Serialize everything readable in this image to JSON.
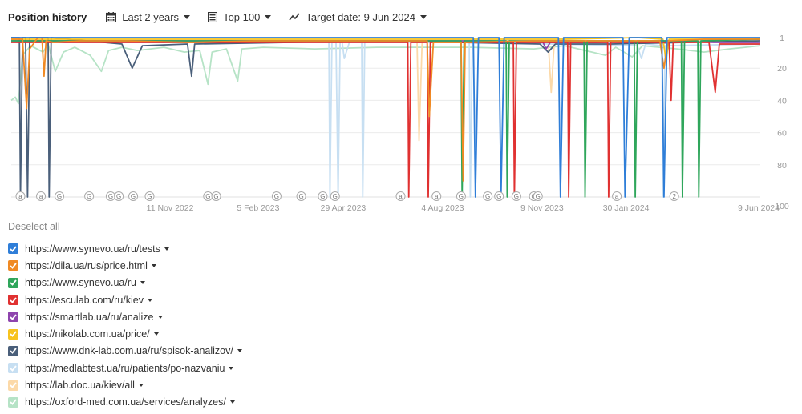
{
  "header": {
    "title": "Position history",
    "period": "Last 2 years",
    "top": "Top 100",
    "target": "Target date: 9 Jun 2024"
  },
  "chart_data": {
    "type": "line",
    "ylim": [
      1,
      100
    ],
    "y_inverted": true,
    "grid": true,
    "yticks": [
      1,
      20,
      40,
      60,
      80,
      100
    ],
    "xticks": [
      "11 Nov 2022",
      "5 Feb 2023",
      "29 Apr 2023",
      "4 Aug 2023",
      "9 Nov 2023",
      "30 Jan 2024",
      "9 Jun 2024"
    ],
    "xlim": [
      "2022-06-09",
      "2024-06-09"
    ],
    "annotations": [
      {
        "date": "2022-06-18",
        "label": "a"
      },
      {
        "date": "2022-07-08",
        "label": "a"
      },
      {
        "date": "2022-07-26",
        "label": "G"
      },
      {
        "date": "2022-08-24",
        "label": "G"
      },
      {
        "date": "2022-09-14",
        "label": "G"
      },
      {
        "date": "2022-09-22",
        "label": "G"
      },
      {
        "date": "2022-10-06",
        "label": "G"
      },
      {
        "date": "2022-10-22",
        "label": "G"
      },
      {
        "date": "2022-12-18",
        "label": "G"
      },
      {
        "date": "2022-12-26",
        "label": "G"
      },
      {
        "date": "2023-02-23",
        "label": "G"
      },
      {
        "date": "2023-03-19",
        "label": "G"
      },
      {
        "date": "2023-04-09",
        "label": "G"
      },
      {
        "date": "2023-04-21",
        "label": "G"
      },
      {
        "date": "2023-06-24",
        "label": "a"
      },
      {
        "date": "2023-07-29",
        "label": "a"
      },
      {
        "date": "2023-08-22",
        "label": "G"
      },
      {
        "date": "2023-09-17",
        "label": "G"
      },
      {
        "date": "2023-09-28",
        "label": "G"
      },
      {
        "date": "2023-10-15",
        "label": "G"
      },
      {
        "date": "2023-11-01",
        "label": "G"
      },
      {
        "date": "2023-11-05",
        "label": "G"
      },
      {
        "date": "2024-01-21",
        "label": "a"
      },
      {
        "date": "2024-03-17",
        "label": "2"
      }
    ],
    "series": [
      {
        "url": "https://www.synevo.ua/ru/tests",
        "color": "#2f7ed8",
        "points": [
          [
            "2022-06-09",
            1
          ],
          [
            "2022-07-24",
            1
          ],
          [
            "2022-09-05",
            1
          ],
          [
            "2022-11-20",
            1
          ],
          [
            "2023-02-01",
            1
          ],
          [
            "2023-05-01",
            1
          ],
          [
            "2023-08-12",
            1
          ],
          [
            "2023-09-03",
            1
          ],
          [
            "2023-09-05",
            100
          ],
          [
            "2023-09-08",
            1
          ],
          [
            "2023-09-28",
            1
          ],
          [
            "2023-09-30",
            100
          ],
          [
            "2023-10-03",
            1
          ],
          [
            "2023-11-25",
            1
          ],
          [
            "2023-11-27",
            100
          ],
          [
            "2023-11-30",
            1
          ],
          [
            "2024-01-27",
            1
          ],
          [
            "2024-01-29",
            100
          ],
          [
            "2024-02-02",
            1
          ],
          [
            "2024-03-05",
            1
          ],
          [
            "2024-03-07",
            100
          ],
          [
            "2024-03-10",
            1
          ],
          [
            "2024-04-20",
            1
          ],
          [
            "2024-06-09",
            1
          ]
        ]
      },
      {
        "url": "https://dila.ua/rus/price.html",
        "color": "#f08a24",
        "points": [
          [
            "2022-06-09",
            2
          ],
          [
            "2022-06-20",
            2
          ],
          [
            "2022-06-24",
            45
          ],
          [
            "2022-06-27",
            8
          ],
          [
            "2022-07-05",
            1
          ],
          [
            "2022-07-09",
            1
          ],
          [
            "2022-07-11",
            25
          ],
          [
            "2022-07-13",
            3
          ],
          [
            "2022-07-20",
            4
          ],
          [
            "2022-08-15",
            3
          ],
          [
            "2022-10-01",
            3
          ],
          [
            "2022-12-01",
            4
          ],
          [
            "2023-02-01",
            3
          ],
          [
            "2023-05-01",
            3
          ],
          [
            "2023-07-20",
            3
          ],
          [
            "2023-07-22",
            50
          ],
          [
            "2023-07-26",
            4
          ],
          [
            "2023-08-22",
            4
          ],
          [
            "2023-08-24",
            90
          ],
          [
            "2023-08-26",
            4
          ],
          [
            "2023-11-01",
            3
          ],
          [
            "2024-02-15",
            3
          ],
          [
            "2024-03-03",
            3
          ],
          [
            "2024-03-07",
            20
          ],
          [
            "2024-03-11",
            3
          ],
          [
            "2024-04-15",
            2
          ],
          [
            "2024-06-09",
            2
          ]
        ]
      },
      {
        "url": "https://www.synevo.ua/ru",
        "color": "#2fa65b",
        "points": [
          [
            "2022-06-09",
            3
          ],
          [
            "2022-12-01",
            3
          ],
          [
            "2023-06-01",
            3
          ],
          [
            "2023-08-22",
            3
          ],
          [
            "2023-08-23",
            100
          ],
          [
            "2023-08-25",
            3
          ],
          [
            "2023-10-05",
            3
          ],
          [
            "2023-10-06",
            100
          ],
          [
            "2023-10-08",
            3
          ],
          [
            "2023-12-20",
            3
          ],
          [
            "2023-12-21",
            100
          ],
          [
            "2023-12-23",
            3
          ],
          [
            "2024-02-07",
            3
          ],
          [
            "2024-02-08",
            100
          ],
          [
            "2024-02-10",
            3
          ],
          [
            "2024-03-24",
            3
          ],
          [
            "2024-03-25",
            100
          ],
          [
            "2024-03-27",
            3
          ],
          [
            "2024-04-09",
            3
          ],
          [
            "2024-04-10",
            100
          ],
          [
            "2024-04-12",
            3
          ],
          [
            "2024-06-09",
            2
          ]
        ]
      },
      {
        "url": "https://esculab.com/ru/kiev",
        "color": "#e03131",
        "points": [
          [
            "2022-06-09",
            4
          ],
          [
            "2023-05-01",
            4
          ],
          [
            "2023-07-01",
            4
          ],
          [
            "2023-07-02",
            100
          ],
          [
            "2023-07-04",
            4
          ],
          [
            "2023-07-20",
            4
          ],
          [
            "2023-07-21",
            100
          ],
          [
            "2023-07-23",
            4
          ],
          [
            "2023-10-12",
            4
          ],
          [
            "2023-10-13",
            100
          ],
          [
            "2023-10-15",
            4
          ],
          [
            "2023-12-04",
            4
          ],
          [
            "2023-12-05",
            100
          ],
          [
            "2023-12-07",
            4
          ],
          [
            "2024-01-12",
            4
          ],
          [
            "2024-01-13",
            100
          ],
          [
            "2024-01-15",
            4
          ],
          [
            "2024-03-12",
            4
          ],
          [
            "2024-03-14",
            40
          ],
          [
            "2024-03-16",
            4
          ],
          [
            "2024-04-20",
            4
          ],
          [
            "2024-04-26",
            35
          ],
          [
            "2024-04-30",
            5
          ],
          [
            "2024-06-09",
            5
          ]
        ]
      },
      {
        "url": "https://smartlab.ua/ru/analize",
        "color": "#8e44ad",
        "points": [
          [
            "2022-06-09",
            3
          ],
          [
            "2023-03-01",
            3
          ],
          [
            "2023-06-01",
            3
          ],
          [
            "2023-09-20",
            3
          ],
          [
            "2023-11-10",
            4
          ],
          [
            "2023-11-13",
            8
          ],
          [
            "2023-11-17",
            4
          ],
          [
            "2024-01-01",
            4
          ],
          [
            "2024-03-05",
            3
          ],
          [
            "2024-04-25",
            4
          ],
          [
            "2024-06-09",
            4
          ]
        ]
      },
      {
        "url": "https://nikolab.com.ua/price/",
        "color": "#f7c31e",
        "points": [
          [
            "2022-06-09",
            2
          ],
          [
            "2022-12-01",
            2
          ],
          [
            "2023-06-01",
            2
          ],
          [
            "2023-09-10",
            2
          ],
          [
            "2023-12-01",
            2
          ],
          [
            "2024-02-10",
            1
          ],
          [
            "2024-03-06",
            2
          ],
          [
            "2024-03-09",
            15
          ],
          [
            "2024-03-12",
            2
          ],
          [
            "2024-06-09",
            2
          ]
        ]
      },
      {
        "url": "https://www.dnk-lab.com.ua/ru/spisok-analizov/",
        "color": "#4a5f7a",
        "points": [
          [
            "2022-06-09",
            1
          ],
          [
            "2022-06-17",
            1
          ],
          [
            "2022-06-18",
            100
          ],
          [
            "2022-06-20",
            1
          ],
          [
            "2022-06-23",
            1
          ],
          [
            "2022-06-25",
            100
          ],
          [
            "2022-06-27",
            1
          ],
          [
            "2022-07-15",
            1
          ],
          [
            "2022-07-16",
            100
          ],
          [
            "2022-07-18",
            1
          ],
          [
            "2022-09-25",
            5
          ],
          [
            "2022-10-05",
            20
          ],
          [
            "2022-10-15",
            6
          ],
          [
            "2022-11-28",
            5
          ],
          [
            "2022-12-02",
            25
          ],
          [
            "2022-12-05",
            5
          ],
          [
            "2023-06-01",
            3
          ],
          [
            "2023-11-07",
            5
          ],
          [
            "2023-11-15",
            10
          ],
          [
            "2023-11-22",
            5
          ],
          [
            "2024-01-15",
            5
          ],
          [
            "2024-06-09",
            3
          ]
        ]
      },
      {
        "url": "https://medlabtest.ua/ru/patients/po-nazvaniu",
        "color": "#c7dff2",
        "points": [
          [
            "2022-06-09",
            4
          ],
          [
            "2023-04-15",
            4
          ],
          [
            "2023-04-16",
            100
          ],
          [
            "2023-04-18",
            4
          ],
          [
            "2023-04-22",
            4
          ],
          [
            "2023-04-24",
            100
          ],
          [
            "2023-04-26",
            4
          ],
          [
            "2023-04-28",
            4
          ],
          [
            "2023-04-30",
            14
          ],
          [
            "2023-05-05",
            4
          ],
          [
            "2023-05-17",
            4
          ],
          [
            "2023-05-18",
            100
          ],
          [
            "2023-05-20",
            4
          ],
          [
            "2023-08-30",
            4
          ],
          [
            "2023-08-31",
            100
          ],
          [
            "2023-09-02",
            4
          ],
          [
            "2024-02-10",
            6
          ],
          [
            "2024-02-14",
            14
          ],
          [
            "2024-02-18",
            5
          ],
          [
            "2024-03-05",
            6
          ],
          [
            "2024-03-06",
            100
          ],
          [
            "2024-03-08",
            6
          ],
          [
            "2024-06-09",
            5
          ]
        ]
      },
      {
        "url": "https://lab.doc.ua/kiev/all",
        "color": "#fcd9a8",
        "points": [
          [
            "2022-06-09",
            3
          ],
          [
            "2023-03-01",
            3
          ],
          [
            "2023-07-10",
            3
          ],
          [
            "2023-07-12",
            65
          ],
          [
            "2023-07-15",
            3
          ],
          [
            "2023-09-10",
            3
          ],
          [
            "2023-11-15",
            3
          ],
          [
            "2023-11-18",
            35
          ],
          [
            "2023-11-21",
            3
          ],
          [
            "2024-06-09",
            3
          ]
        ]
      },
      {
        "url": "https://oxford-med.com.ua/services/analyzes/",
        "color": "#b6e3c6",
        "points": [
          [
            "2022-06-09",
            40
          ],
          [
            "2022-06-13",
            38
          ],
          [
            "2022-06-16",
            42
          ],
          [
            "2022-06-20",
            12
          ],
          [
            "2022-06-28",
            6
          ],
          [
            "2022-07-10",
            10
          ],
          [
            "2022-07-15",
            5
          ],
          [
            "2022-07-22",
            22
          ],
          [
            "2022-07-30",
            10
          ],
          [
            "2022-08-10",
            7
          ],
          [
            "2022-08-25",
            12
          ],
          [
            "2022-09-05",
            22
          ],
          [
            "2022-09-12",
            9
          ],
          [
            "2022-09-25",
            7
          ],
          [
            "2022-10-10",
            9
          ],
          [
            "2022-11-05",
            7
          ],
          [
            "2022-11-25",
            10
          ],
          [
            "2022-12-10",
            9
          ],
          [
            "2022-12-18",
            30
          ],
          [
            "2022-12-22",
            10
          ],
          [
            "2023-01-05",
            8
          ],
          [
            "2023-01-16",
            28
          ],
          [
            "2023-01-20",
            8
          ],
          [
            "2023-02-10",
            7
          ],
          [
            "2023-04-01",
            8
          ],
          [
            "2023-06-01",
            7
          ],
          [
            "2023-07-15",
            7
          ],
          [
            "2023-09-01",
            7
          ],
          [
            "2023-11-01",
            8
          ],
          [
            "2023-12-01",
            6
          ],
          [
            "2024-01-10",
            12
          ],
          [
            "2024-01-20",
            7
          ],
          [
            "2024-02-05",
            13
          ],
          [
            "2024-02-15",
            6
          ],
          [
            "2024-03-20",
            8
          ],
          [
            "2024-04-15",
            10
          ],
          [
            "2024-05-10",
            8
          ],
          [
            "2024-06-09",
            6
          ]
        ]
      }
    ]
  },
  "legend": {
    "deselect": "Deselect all"
  }
}
